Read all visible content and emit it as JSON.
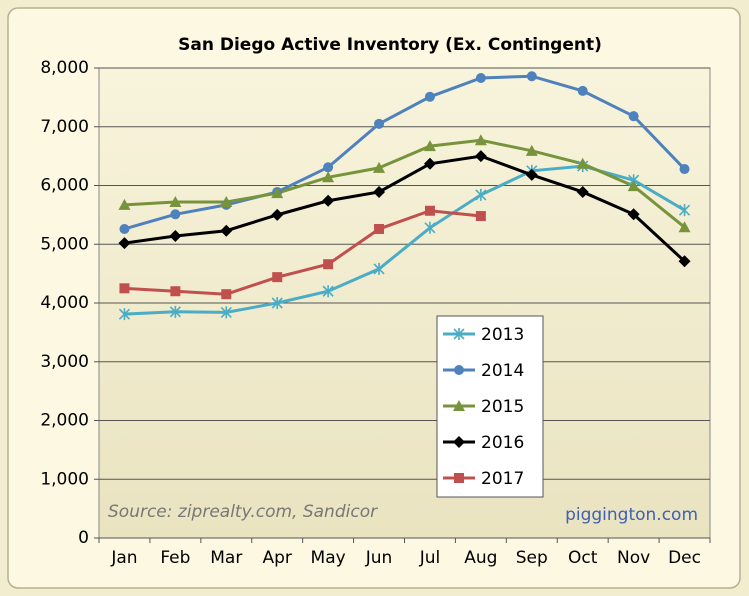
{
  "chart_data": {
    "type": "line",
    "title": "San Diego Active Inventory (Ex. Contingent)",
    "categories": [
      "Jan",
      "Feb",
      "Mar",
      "Apr",
      "May",
      "Jun",
      "Jul",
      "Aug",
      "Sep",
      "Oct",
      "Nov",
      "Dec"
    ],
    "series": [
      {
        "name": "2013",
        "color": "#4bacc6",
        "marker": "star",
        "values": [
          3810,
          3850,
          3840,
          4000,
          4200,
          4580,
          5280,
          5840,
          6250,
          6330,
          6090,
          5580
        ]
      },
      {
        "name": "2014",
        "color": "#4f81bd",
        "marker": "circle",
        "values": [
          5260,
          5510,
          5670,
          5890,
          6310,
          7050,
          7510,
          7830,
          7860,
          7610,
          7180,
          6280
        ]
      },
      {
        "name": "2015",
        "color": "#77933c",
        "marker": "triangle",
        "values": [
          5670,
          5720,
          5720,
          5870,
          6140,
          6300,
          6670,
          6770,
          6590,
          6370,
          5990,
          5290
        ]
      },
      {
        "name": "2016",
        "color": "#000000",
        "marker": "diamond",
        "values": [
          5020,
          5140,
          5230,
          5500,
          5740,
          5890,
          6370,
          6500,
          6180,
          5890,
          5510,
          4710
        ]
      },
      {
        "name": "2017",
        "color": "#c0504d",
        "marker": "square",
        "values": [
          4250,
          4200,
          4150,
          4440,
          4660,
          5260,
          5570,
          5480,
          null,
          null,
          null,
          null
        ]
      }
    ],
    "ylim": [
      0,
      8000
    ],
    "yticks": [
      0,
      {
        "value": 1000,
        "label": "1,000"
      },
      {
        "value": 2000,
        "label": "2,000"
      },
      {
        "value": 3000,
        "label": "3,000"
      },
      {
        "value": 4000,
        "label": "4,000"
      },
      {
        "value": 5000,
        "label": "5,000"
      },
      {
        "value": 6000,
        "label": "6,000"
      },
      {
        "value": 7000,
        "label": "7,000"
      },
      {
        "value": 8000,
        "label": "8,000"
      }
    ],
    "grid": true,
    "legend": "center",
    "annotations": [
      "Source: ziprealty.com, Sandicor",
      "piggington.com"
    ]
  }
}
